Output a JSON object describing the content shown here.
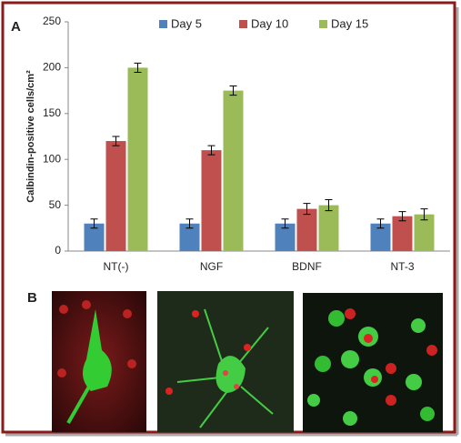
{
  "chart_data": {
    "type": "bar",
    "panel_label": "A",
    "y_label": "Calbindin-positive cells/cm²",
    "categories": [
      "NT(-)",
      "NGF",
      "BDNF",
      "NT-3"
    ],
    "series": [
      {
        "name": "Day 5",
        "color": "#4f81bd",
        "values": [
          30,
          30,
          30,
          30
        ],
        "errors": [
          5,
          5,
          5,
          5
        ]
      },
      {
        "name": "Day 10",
        "color": "#c0504d",
        "values": [
          120,
          110,
          46,
          38
        ],
        "errors": [
          5,
          5,
          6,
          5
        ]
      },
      {
        "name": "Day 15",
        "color": "#9bbb59",
        "values": [
          200,
          175,
          50,
          40
        ],
        "errors": [
          5,
          5,
          6,
          6
        ]
      }
    ],
    "ylim": [
      0,
      250
    ],
    "yticks": [
      0,
      50,
      100,
      150,
      200,
      250
    ],
    "grid": false
  },
  "images": {
    "panel_label": "B"
  }
}
